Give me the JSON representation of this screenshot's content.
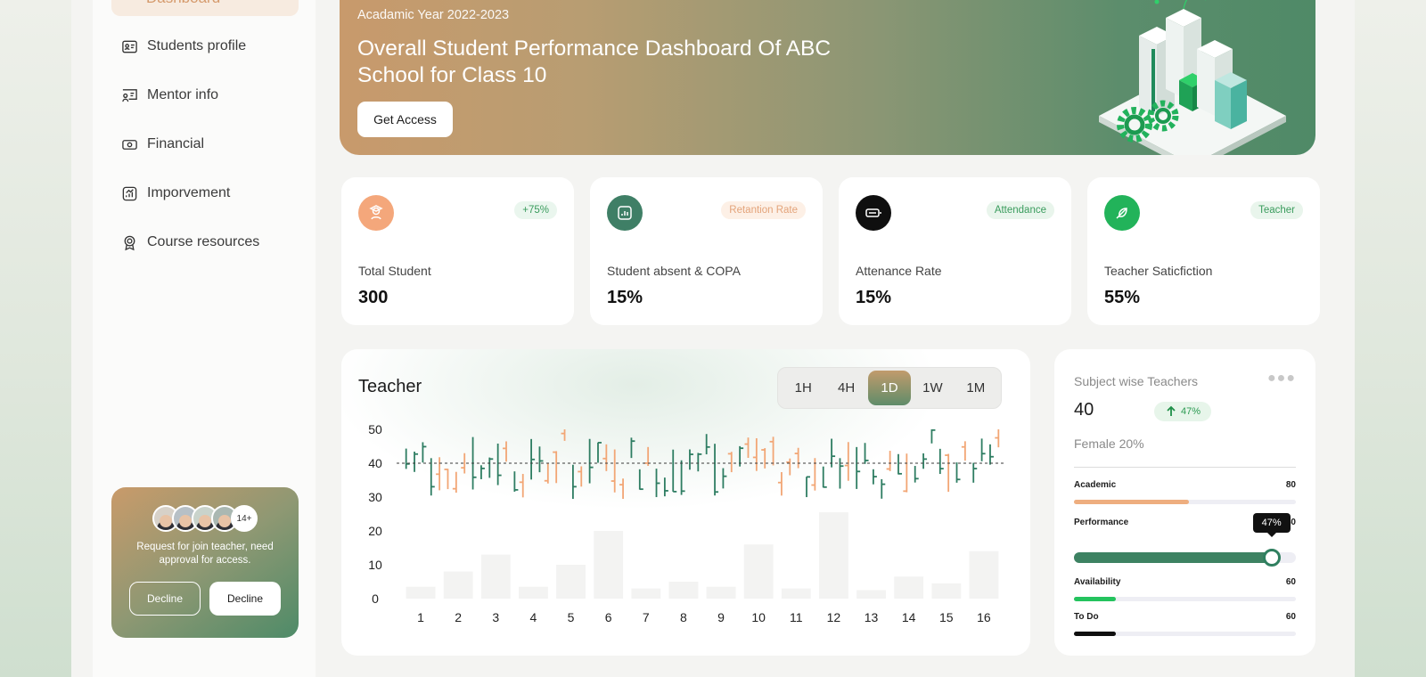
{
  "sidebar": {
    "active_item": "Dashboard",
    "items": [
      {
        "label": "Students profile",
        "icon": "id-card-icon"
      },
      {
        "label": "Mentor info",
        "icon": "mentor-board-icon"
      },
      {
        "label": "Financial",
        "icon": "banknote-icon"
      },
      {
        "label": "Imporvement",
        "icon": "chart-growth-icon"
      },
      {
        "label": "Course resources",
        "icon": "award-badge-icon"
      }
    ],
    "request_card": {
      "avatar_more": "14+",
      "text": "Request for join teacher, need approval for access.",
      "decline_outline_label": "Decline",
      "decline_solid_label": "Decline"
    }
  },
  "banner": {
    "year": "Acadamic Year 2022-2023",
    "title": "Overall Student Performance Dashboard Of ABC School for Class 10",
    "button_label": "Get Access"
  },
  "stats": [
    {
      "badge": "+75%",
      "label": "Total Student",
      "value": "300",
      "icon": "graduate-icon",
      "icon_color": "#f4a77b",
      "badge_bg": "#eaf6ee",
      "badge_color": "#3a9c5d"
    },
    {
      "badge": "Retantion Rate",
      "label": "Student absent & COPA",
      "value": "15%",
      "icon": "report-icon",
      "icon_color": "#3f7f66",
      "badge_bg": "#fdf0e6",
      "badge_color": "#e3a37a"
    },
    {
      "badge": "Attendance",
      "label": "Attenance Rate",
      "value": "15%",
      "icon": "battery-icon",
      "icon_color": "#0f0f0f",
      "badge_bg": "#e9f5ec",
      "badge_color": "#3a9c5d"
    },
    {
      "badge": "Teacher",
      "label": "Teacher Saticfiction",
      "value": "55%",
      "icon": "feather-icon",
      "icon_color": "#22b35a",
      "badge_bg": "#e9f5ec",
      "badge_color": "#3a9c5d"
    }
  ],
  "teacher_panel": {
    "title": "Teacher",
    "timeframes": [
      "1H",
      "4H",
      "1D",
      "1W",
      "1M"
    ],
    "active_timeframe": "1D"
  },
  "chart_data": {
    "type": "bar",
    "title": "Teacher",
    "categories": [
      "1",
      "2",
      "3",
      "4",
      "5",
      "6",
      "7",
      "8",
      "9",
      "10",
      "11",
      "12",
      "13",
      "14",
      "15",
      "16"
    ],
    "y_ticks": [
      0,
      10,
      20,
      30,
      40,
      50
    ],
    "ylim": [
      0,
      50
    ],
    "reference_line": 40,
    "bar_values": [
      3.5,
      8,
      13,
      3.5,
      10,
      20,
      3,
      5,
      3.5,
      16,
      3,
      25.5,
      2.5,
      6.5,
      4.5,
      14
    ],
    "candle_range": [
      25,
      50
    ],
    "grid": false,
    "colors": {
      "up": "#f2a675",
      "down": "#2e7d62",
      "bar": "#f3f3f2",
      "reference": "#3a3a3a"
    }
  },
  "subject_panel": {
    "title": "Subject wise Teachers",
    "count": "40",
    "change": "47%",
    "female": "Female 20%",
    "metrics": [
      {
        "label": "Academic",
        "value": "80",
        "progress": 0.52,
        "color": "#eeae7f"
      },
      {
        "label": "Performance",
        "value": "40",
        "progress": 0.89,
        "color": "#3d8262",
        "tooltip": "47%"
      },
      {
        "label": "Availability",
        "value": "60",
        "progress": 0.19,
        "color": "#24c35e"
      },
      {
        "label": "To Do",
        "value": "60",
        "progress": 0.19,
        "color": "#0f0f0f"
      }
    ]
  }
}
